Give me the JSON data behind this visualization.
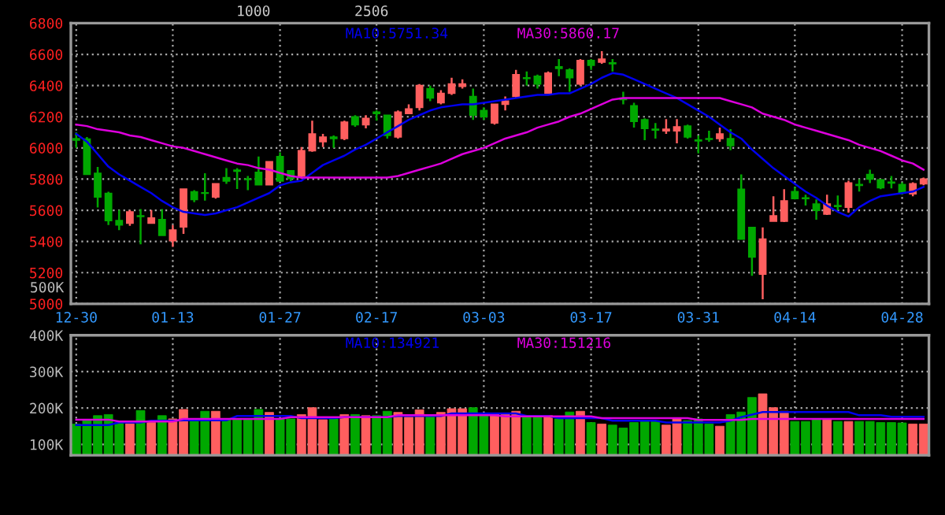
{
  "chart_data": [
    {
      "type": "candlestick",
      "title": "1000",
      "subtitle": "2506",
      "categories": [
        "12-30",
        null,
        null,
        null,
        null,
        null,
        null,
        null,
        null,
        "01-13",
        null,
        null,
        null,
        null,
        null,
        null,
        null,
        null,
        null,
        "01-27",
        null,
        null,
        null,
        null,
        null,
        null,
        null,
        null,
        "02-17",
        null,
        null,
        null,
        null,
        null,
        null,
        null,
        null,
        null,
        "03-03",
        null,
        null,
        null,
        null,
        null,
        null,
        null,
        null,
        null,
        "03-17",
        null,
        null,
        null,
        null,
        null,
        null,
        null,
        null,
        null,
        "03-31",
        null,
        null,
        null,
        null,
        null,
        null,
        null,
        null,
        "04-14",
        null,
        null,
        null,
        null,
        null,
        null,
        null,
        null,
        null,
        "04-28",
        null,
        null
      ],
      "ohlc": [
        [
          6060,
          6100,
          6000,
          6050
        ],
        [
          6057,
          6070,
          5830,
          5830
        ],
        [
          5837,
          5878,
          5618,
          5685
        ],
        [
          5709,
          5719,
          5506,
          5534
        ],
        [
          5534,
          5601,
          5473,
          5506
        ],
        [
          5517,
          5601,
          5500,
          5590
        ],
        [
          5565,
          5608,
          5382,
          5560
        ],
        [
          5517,
          5601,
          5517,
          5550
        ],
        [
          5540,
          5608,
          5439,
          5439
        ],
        [
          5405,
          5506,
          5365,
          5473
        ],
        [
          5493,
          5736,
          5449,
          5736
        ],
        [
          5719,
          5729,
          5652,
          5669
        ],
        [
          5712,
          5837,
          5662,
          5709
        ],
        [
          5685,
          5770,
          5675,
          5770
        ],
        [
          5810,
          5871,
          5770,
          5787
        ],
        [
          5857,
          5871,
          5736,
          5851
        ],
        [
          5800,
          5820,
          5729,
          5797
        ],
        [
          5844,
          5945,
          5763,
          5763
        ],
        [
          5763,
          5912,
          5763,
          5912
        ],
        [
          5945,
          5972,
          5787,
          5787
        ],
        [
          5854,
          5854,
          5787,
          5804
        ],
        [
          5820,
          6006,
          5804,
          5982
        ],
        [
          5982,
          6175,
          5975,
          6090
        ],
        [
          6040,
          6090,
          6006,
          6070
        ],
        [
          6070,
          6080,
          6000,
          6060
        ],
        [
          6060,
          6175,
          6050,
          6165
        ],
        [
          6200,
          6210,
          6135,
          6148
        ],
        [
          6148,
          6210,
          6125,
          6190
        ],
        [
          6230,
          6240,
          6175,
          6220
        ],
        [
          6210,
          6210,
          6060,
          6080
        ],
        [
          6070,
          6240,
          6060,
          6230
        ],
        [
          6220,
          6280,
          6220,
          6250
        ],
        [
          6260,
          6410,
          6240,
          6400
        ],
        [
          6380,
          6400,
          6300,
          6320
        ],
        [
          6290,
          6370,
          6280,
          6350
        ],
        [
          6350,
          6450,
          6340,
          6410
        ],
        [
          6395,
          6440,
          6380,
          6410
        ],
        [
          6330,
          6380,
          6180,
          6210
        ],
        [
          6240,
          6260,
          6180,
          6200
        ],
        [
          6160,
          6280,
          6150,
          6280
        ],
        [
          6280,
          6330,
          6240,
          6300
        ],
        [
          6330,
          6500,
          6320,
          6470
        ],
        [
          6450,
          6490,
          6400,
          6445
        ],
        [
          6460,
          6470,
          6380,
          6410
        ],
        [
          6350,
          6490,
          6350,
          6480
        ],
        [
          6520,
          6570,
          6460,
          6510
        ],
        [
          6500,
          6510,
          6360,
          6450
        ],
        [
          6410,
          6570,
          6400,
          6560
        ],
        [
          6560,
          6570,
          6500,
          6530
        ],
        [
          6550,
          6620,
          6540,
          6570
        ],
        [
          6545,
          6570,
          6490,
          6540
        ],
        [
          6320,
          6360,
          6280,
          6310
        ],
        [
          6270,
          6290,
          6130,
          6170
        ],
        [
          6180,
          6190,
          6050,
          6125
        ],
        [
          6120,
          6160,
          6060,
          6115
        ],
        [
          6110,
          6185,
          6090,
          6120
        ],
        [
          6110,
          6185,
          6030,
          6135
        ],
        [
          6140,
          6150,
          6060,
          6070
        ],
        [
          6050,
          6080,
          5965,
          6045
        ],
        [
          6060,
          6110,
          6040,
          6055
        ],
        [
          6060,
          6130,
          6040,
          6090
        ],
        [
          6060,
          6120,
          5985,
          6015
        ],
        [
          5735,
          5830,
          5415,
          5415
        ],
        [
          5490,
          5490,
          5180,
          5300
        ],
        [
          5190,
          5490,
          5030,
          5415
        ],
        [
          5530,
          5690,
          5530,
          5565
        ],
        [
          5530,
          5735,
          5525,
          5660
        ],
        [
          5720,
          5750,
          5670,
          5675
        ],
        [
          5680,
          5700,
          5630,
          5675
        ],
        [
          5640,
          5670,
          5540,
          5600
        ],
        [
          5575,
          5700,
          5570,
          5640
        ],
        [
          5630,
          5695,
          5600,
          5625
        ],
        [
          5620,
          5790,
          5585,
          5775
        ],
        [
          5765,
          5800,
          5720,
          5760
        ],
        [
          5830,
          5860,
          5775,
          5800
        ],
        [
          5795,
          5800,
          5735,
          5745
        ],
        [
          5780,
          5820,
          5740,
          5775
        ],
        [
          5765,
          5780,
          5700,
          5710
        ],
        [
          5705,
          5780,
          5690,
          5770
        ],
        [
          5770,
          5810,
          5760,
          5800
        ]
      ],
      "colors": [
        "#00a800",
        "#00a800",
        "#00a800",
        "#00a800",
        "#00a800",
        "#ff5f5f",
        "#00a800",
        "#ff5f5f",
        "#00a800",
        "#ff5f5f",
        "#ff5f5f",
        "#00a800",
        "#00a800",
        "#ff5f5f",
        "#00a800",
        "#00a800",
        "#00a800",
        "#00a800",
        "#ff5f5f",
        "#00a800",
        "#00a800",
        "#ff5f5f",
        "#ff5f5f",
        "#ff5f5f",
        "#00a800",
        "#ff5f5f",
        "#00a800",
        "#ff5f5f",
        "#00a800",
        "#00a800",
        "#ff5f5f",
        "#ff5f5f",
        "#ff5f5f",
        "#00a800",
        "#ff5f5f",
        "#ff5f5f",
        "#ff5f5f",
        "#00a800",
        "#00a800",
        "#ff5f5f",
        "#ff5f5f",
        "#ff5f5f",
        "#00a800",
        "#00a800",
        "#ff5f5f",
        "#00a800",
        "#00a800",
        "#ff5f5f",
        "#00a800",
        "#ff5f5f",
        "#00a800",
        "#00a800",
        "#00a800",
        "#00a800",
        "#00a800",
        "#ff5f5f",
        "#ff5f5f",
        "#00a800",
        "#00a800",
        "#00a800",
        "#ff5f5f",
        "#00a800",
        "#00a800",
        "#00a800",
        "#ff5f5f",
        "#ff5f5f",
        "#ff5f5f",
        "#00a800",
        "#00a800",
        "#00a800",
        "#ff5f5f",
        "#00a800",
        "#ff5f5f",
        "#00a800",
        "#00a800",
        "#00a800",
        "#00a800",
        "#00a800",
        "#ff5f5f",
        "#ff5f5f"
      ],
      "series": [
        {
          "name": "MA10:5751.34",
          "type": "line",
          "color": "#0000ee",
          "values": [
            6090,
            6040,
            5960,
            5880,
            5830,
            5790,
            5750,
            5710,
            5660,
            5620,
            5590,
            5580,
            5570,
            5580,
            5600,
            5620,
            5650,
            5680,
            5710,
            5760,
            5780,
            5790,
            5840,
            5890,
            5920,
            5950,
            5990,
            6020,
            6060,
            6100,
            6140,
            6180,
            6210,
            6240,
            6260,
            6270,
            6280,
            6280,
            6290,
            6300,
            6310,
            6320,
            6330,
            6340,
            6340,
            6350,
            6350,
            6380,
            6410,
            6450,
            6480,
            6470,
            6440,
            6410,
            6380,
            6350,
            6320,
            6280,
            6240,
            6200,
            6150,
            6100,
            6060,
            5990,
            5930,
            5870,
            5820,
            5770,
            5720,
            5680,
            5630,
            5590,
            5560,
            5620,
            5660,
            5690,
            5700,
            5710,
            5720,
            5750
          ]
        },
        {
          "name": "MA30:5860.17",
          "type": "line",
          "color": "#dd00dd",
          "values": [
            6150,
            6140,
            6120,
            6110,
            6100,
            6080,
            6070,
            6050,
            6030,
            6010,
            6000,
            5980,
            5960,
            5940,
            5920,
            5900,
            5890,
            5870,
            5860,
            5840,
            5820,
            5810,
            5810,
            5810,
            5810,
            5810,
            5810,
            5810,
            5810,
            5810,
            5820,
            5840,
            5860,
            5880,
            5900,
            5930,
            5960,
            5980,
            6000,
            6030,
            6060,
            6080,
            6100,
            6130,
            6150,
            6170,
            6200,
            6220,
            6250,
            6280,
            6310,
            6320,
            6320,
            6320,
            6320,
            6320,
            6320,
            6320,
            6320,
            6320,
            6320,
            6300,
            6280,
            6260,
            6220,
            6200,
            6180,
            6150,
            6130,
            6110,
            6090,
            6070,
            6050,
            6020,
            6000,
            5980,
            5950,
            5920,
            5900,
            5860
          ]
        }
      ],
      "ylim": [
        5000,
        6800
      ],
      "yticks": [
        5000,
        5200,
        5400,
        5600,
        5800,
        6000,
        6200,
        6400,
        6600,
        6800
      ],
      "grid": true,
      "legend": false
    },
    {
      "type": "bar",
      "annotations": [
        "500K"
      ],
      "categories": [
        null,
        null,
        null,
        null,
        null,
        null,
        null,
        null,
        null,
        null,
        null,
        null,
        null,
        null,
        null,
        null,
        null,
        null,
        null,
        null,
        null,
        null,
        null,
        null,
        null,
        null,
        null,
        null,
        null,
        null,
        null,
        null,
        null,
        null,
        null,
        null,
        null,
        null,
        null,
        null,
        null,
        null,
        null,
        null,
        null,
        null,
        null,
        null,
        null,
        null,
        null,
        null,
        null,
        null,
        null,
        null,
        null,
        null,
        null,
        null,
        null,
        null,
        null,
        null,
        null,
        null,
        null,
        null,
        null,
        null,
        null,
        null,
        null,
        null,
        null,
        null,
        null,
        null,
        null,
        null
      ],
      "values": [
        156000,
        168000,
        179000,
        182000,
        160000,
        157000,
        193000,
        160000,
        179000,
        170000,
        196000,
        168000,
        191000,
        191000,
        170000,
        170000,
        170000,
        196000,
        188000,
        170000,
        170000,
        182000,
        201000,
        168000,
        170000,
        182000,
        182000,
        179000,
        179000,
        191000,
        188000,
        175000,
        195000,
        179000,
        188000,
        198000,
        198000,
        201000,
        185000,
        185000,
        185000,
        191000,
        179000,
        175000,
        179000,
        170000,
        189000,
        191000,
        160000,
        156000,
        153000,
        145000,
        160000,
        165000,
        165000,
        153000,
        170000,
        165000,
        170000,
        156000,
        150000,
        182000,
        189000,
        229000,
        239000,
        201000,
        191000,
        163000,
        163000,
        170000,
        170000,
        163000,
        163000,
        163000,
        163000,
        160000,
        160000,
        159000,
        156000,
        156000
      ],
      "colors": [
        "#00a800",
        "#00a800",
        "#00a800",
        "#00a800",
        "#00a800",
        "#ff5f5f",
        "#00a800",
        "#ff5f5f",
        "#00a800",
        "#ff5f5f",
        "#ff5f5f",
        "#00a800",
        "#00a800",
        "#ff5f5f",
        "#00a800",
        "#00a800",
        "#00a800",
        "#00a800",
        "#ff5f5f",
        "#00a800",
        "#00a800",
        "#ff5f5f",
        "#ff5f5f",
        "#ff5f5f",
        "#00a800",
        "#ff5f5f",
        "#00a800",
        "#ff5f5f",
        "#00a800",
        "#00a800",
        "#ff5f5f",
        "#ff5f5f",
        "#ff5f5f",
        "#00a800",
        "#ff5f5f",
        "#ff5f5f",
        "#ff5f5f",
        "#00a800",
        "#00a800",
        "#ff5f5f",
        "#ff5f5f",
        "#ff5f5f",
        "#00a800",
        "#00a800",
        "#ff5f5f",
        "#00a800",
        "#00a800",
        "#ff5f5f",
        "#00a800",
        "#ff5f5f",
        "#00a800",
        "#00a800",
        "#00a800",
        "#00a800",
        "#00a800",
        "#ff5f5f",
        "#ff5f5f",
        "#00a800",
        "#00a800",
        "#00a800",
        "#ff5f5f",
        "#00a800",
        "#00a800",
        "#00a800",
        "#ff5f5f",
        "#ff5f5f",
        "#ff5f5f",
        "#00a800",
        "#00a800",
        "#00a800",
        "#ff5f5f",
        "#00a800",
        "#ff5f5f",
        "#00a800",
        "#00a800",
        "#00a800",
        "#00a800",
        "#00a800",
        "#ff5f5f",
        "#ff5f5f"
      ],
      "series": [
        {
          "name": "MA10:134921",
          "type": "line",
          "color": "#0000ee",
          "values": [
            153000,
            153000,
            153000,
            153000,
            160000,
            160000,
            160000,
            165000,
            165000,
            165000,
            166000,
            166000,
            166000,
            166000,
            166000,
            178000,
            178000,
            178000,
            178000,
            178000,
            178000,
            172000,
            172000,
            172000,
            172000,
            175000,
            175000,
            175000,
            175000,
            175000,
            178000,
            178000,
            178000,
            178000,
            178000,
            185000,
            185000,
            185000,
            185000,
            185000,
            185000,
            185000,
            178000,
            178000,
            178000,
            172000,
            172000,
            172000,
            172000,
            172000,
            165000,
            165000,
            165000,
            165000,
            165000,
            160000,
            160000,
            160000,
            160000,
            160000,
            160000,
            165000,
            175000,
            182000,
            189000,
            189000,
            189000,
            189000,
            189000,
            189000,
            189000,
            189000,
            189000,
            180000,
            180000,
            180000,
            176000,
            176000,
            176000,
            176000
          ]
        },
        {
          "name": "MA30:151216",
          "type": "line",
          "color": "#dd00dd",
          "values": [
            168000,
            168000,
            168000,
            168000,
            163000,
            163000,
            163000,
            163000,
            163000,
            163000,
            170000,
            170000,
            170000,
            170000,
            170000,
            170000,
            170000,
            170000,
            170000,
            170000,
            175000,
            175000,
            175000,
            175000,
            175000,
            175000,
            175000,
            175000,
            175000,
            175000,
            180000,
            180000,
            180000,
            180000,
            180000,
            180000,
            180000,
            180000,
            180000,
            180000,
            177000,
            177000,
            177000,
            177000,
            177000,
            177000,
            177000,
            177000,
            177000,
            172000,
            172000,
            172000,
            172000,
            172000,
            172000,
            172000,
            172000,
            172000,
            167000,
            167000,
            167000,
            167000,
            167000,
            170000,
            170000,
            170000,
            170000,
            170000,
            170000,
            170000,
            170000,
            170000,
            170000,
            170000,
            170000,
            170000,
            170000,
            170000,
            170000,
            170000
          ]
        }
      ],
      "ylim": [
        70000,
        400000
      ],
      "yticks": [
        {
          "value": 100000,
          "label": "100K"
        },
        {
          "value": 200000,
          "label": "200K"
        },
        {
          "value": 300000,
          "label": "300K"
        },
        {
          "value": 400000,
          "label": "400K"
        }
      ],
      "grid": true,
      "legend": false
    }
  ]
}
